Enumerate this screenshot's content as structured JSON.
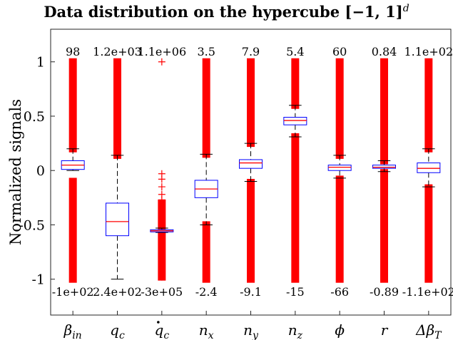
{
  "chart_data": {
    "type": "box",
    "title": "Data distribution on the hypercube [−1, 1]",
    "title_superscript": "d",
    "ylabel": "Normalized signals",
    "ylim": [
      -1.33,
      1.3
    ],
    "yticks": [
      -1,
      -0.5,
      0,
      0.5,
      1
    ],
    "ytick_labels": [
      "-1",
      "-0.5",
      "0",
      "0.5",
      "1"
    ],
    "grid": false,
    "colors": {
      "box": "#0000ff",
      "median": "#ff0000",
      "outlier": "#ff0000",
      "whisker": "#000000"
    },
    "categories": [
      {
        "base": "β",
        "sub": "in",
        "dot": false
      },
      {
        "base": "q",
        "sub": "c",
        "dot": false
      },
      {
        "base": "q",
        "sub": "c",
        "dot": true
      },
      {
        "base": "n",
        "sub": "x",
        "dot": false
      },
      {
        "base": "n",
        "sub": "y",
        "dot": false
      },
      {
        "base": "n",
        "sub": "z",
        "dot": false
      },
      {
        "base": "ϕ",
        "sub": "",
        "dot": false
      },
      {
        "base": "r",
        "sub": "",
        "dot": false
      },
      {
        "base": "Δβ",
        "sub": "T",
        "dot": false
      }
    ],
    "max_labels": [
      "98",
      "1.2e+03",
      "1.1e+06",
      "3.5",
      "7.9",
      "5.4",
      "60",
      "0.84",
      "1.1e+02"
    ],
    "min_labels": [
      "-1e+02",
      "2.4e+02",
      "-3e+05",
      "-2.4",
      "-9.1",
      "-15",
      "-66",
      "-0.89",
      "-1.1e+02"
    ],
    "boxes": [
      {
        "q1": 0.01,
        "median": 0.05,
        "q3": 0.09,
        "whisker_low": 0.0,
        "whisker_high": 0.2,
        "outliers_high": [
          0.2,
          1.0
        ],
        "outliers_low": [
          -1.0,
          -0.1
        ],
        "outlier_points": []
      },
      {
        "q1": -0.6,
        "median": -0.47,
        "q3": -0.3,
        "whisker_low": -1.0,
        "whisker_high": 0.14,
        "outliers_high": [
          0.14,
          1.0
        ],
        "outliers_low": null,
        "outlier_points": []
      },
      {
        "q1": -0.565,
        "median": -0.555,
        "q3": -0.545,
        "whisker_low": -0.57,
        "whisker_high": -0.53,
        "outliers_high": [
          -0.53,
          -0.3
        ],
        "outliers_low": [
          -0.98,
          -0.58
        ],
        "outlier_points": [
          1.0,
          -0.03,
          -0.08,
          -0.15,
          -0.22,
          -0.27,
          -0.32,
          -0.38,
          -0.43,
          -0.47,
          -0.5,
          -0.52,
          -0.6,
          -0.62,
          -0.64,
          -0.67,
          -0.7,
          -0.73,
          -0.77,
          -0.8,
          -0.85,
          -0.9,
          -0.94,
          -0.98
        ]
      },
      {
        "q1": -0.25,
        "median": -0.17,
        "q3": -0.09,
        "whisker_low": -0.5,
        "whisker_high": 0.15,
        "outliers_high": [
          0.15,
          1.0
        ],
        "outliers_low": [
          -1.0,
          -0.5
        ],
        "outlier_points": []
      },
      {
        "q1": 0.02,
        "median": 0.07,
        "q3": 0.1,
        "whisker_low": -0.1,
        "whisker_high": 0.25,
        "outliers_high": [
          0.25,
          1.0
        ],
        "outliers_low": [
          -1.0,
          -0.11
        ],
        "outlier_points": []
      },
      {
        "q1": 0.42,
        "median": 0.46,
        "q3": 0.49,
        "whisker_low": 0.31,
        "whisker_high": 0.6,
        "outliers_high": [
          0.6,
          1.0
        ],
        "outliers_low": [
          -1.0,
          0.31
        ],
        "outlier_points": []
      },
      {
        "q1": 0.0,
        "median": 0.03,
        "q3": 0.05,
        "whisker_low": -0.07,
        "whisker_high": 0.14,
        "outliers_high": [
          0.14,
          1.0
        ],
        "outliers_low": [
          -1.0,
          -0.08
        ],
        "outlier_points": []
      },
      {
        "q1": 0.02,
        "median": 0.03,
        "q3": 0.05,
        "whisker_low": -0.01,
        "whisker_high": 0.09,
        "outliers_high": [
          0.09,
          1.0
        ],
        "outliers_low": [
          -1.0,
          -0.02
        ],
        "outlier_points": []
      },
      {
        "q1": -0.02,
        "median": 0.02,
        "q3": 0.07,
        "whisker_low": -0.15,
        "whisker_high": 0.2,
        "outliers_high": [
          0.2,
          1.0
        ],
        "outliers_low": [
          -1.0,
          -0.16
        ],
        "outlier_points": []
      }
    ]
  }
}
